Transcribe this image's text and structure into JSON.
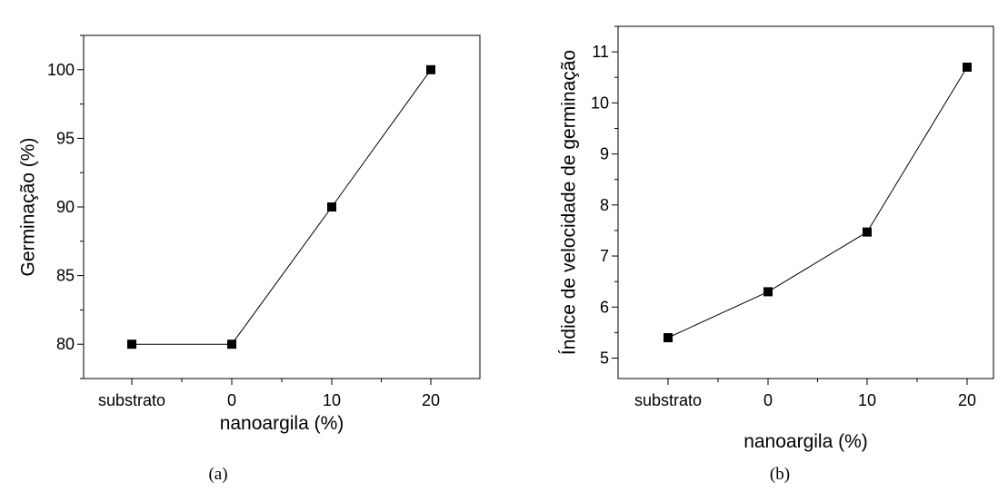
{
  "chart_data": [
    {
      "type": "line",
      "caption": "(a)",
      "categories": [
        "substrato",
        "0",
        "10",
        "20"
      ],
      "values": [
        80,
        80,
        90,
        100
      ],
      "xlabel": "nanoargila (%)",
      "ylabel": "Germinação (%)",
      "ylim": [
        77.5,
        102.5
      ],
      "yticks": [
        "80",
        "85",
        "90",
        "95",
        "100"
      ],
      "grid": false,
      "color": "#000000"
    },
    {
      "type": "line",
      "caption": "(b)",
      "categories": [
        "substrato",
        "0",
        "10",
        "20"
      ],
      "values": [
        5.4,
        6.3,
        7.47,
        10.7
      ],
      "xlabel": "nanoargila (%)",
      "ylabel": "Índice de velocidade de germinação",
      "ylim": [
        4.6,
        11.5
      ],
      "yticks": [
        "5",
        "6",
        "7",
        "8",
        "9",
        "10",
        "11"
      ],
      "grid": false,
      "color": "#000000"
    }
  ]
}
